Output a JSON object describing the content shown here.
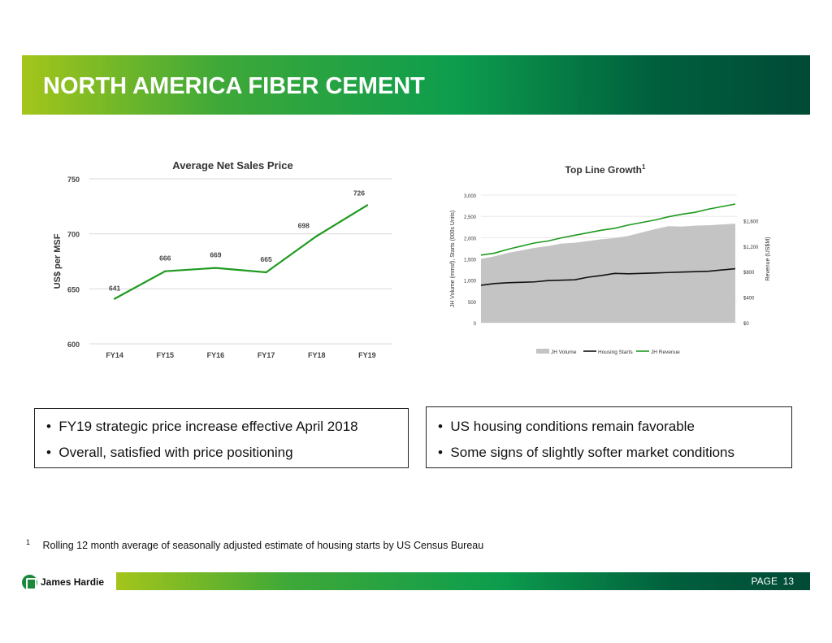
{
  "title": "NORTH AMERICA FIBER CEMENT",
  "chart_data": [
    {
      "type": "line",
      "title": "Average Net Sales Price",
      "ylabel": "US$ per MSF",
      "ylim": [
        600,
        750
      ],
      "yticks": [
        "600",
        "650",
        "700",
        "750"
      ],
      "categories": [
        "FY14",
        "FY15",
        "FY16",
        "FY17",
        "FY18",
        "FY19"
      ],
      "values": [
        641,
        666,
        669,
        665,
        698,
        726
      ],
      "labels": [
        "641",
        "666",
        "669",
        "665",
        "698",
        "726"
      ],
      "color": "#1f9a1f"
    },
    {
      "type": "area",
      "title": "Top Line Growth",
      "title_sup": "1",
      "ylabel": "JH Volume (mmsf), Starts (000s Units)",
      "y2label": "Revenue (US$M)",
      "ylim": [
        0,
        3000
      ],
      "y2lim": [
        0,
        2000
      ],
      "yticks": [
        "0",
        "500",
        "1,000",
        "1,500",
        "2,000",
        "2,500",
        "3,000"
      ],
      "y2ticks": [
        "$0",
        "$400",
        "$800",
        "$1,200",
        "$1,600"
      ],
      "series": [
        {
          "name": "JH Volume",
          "color": "#c4c4c4",
          "values": [
            1500,
            1560,
            1640,
            1700,
            1760,
            1800,
            1860,
            1880,
            1920,
            1960,
            1990,
            2040,
            2120,
            2200,
            2270,
            2260,
            2280,
            2290,
            2310,
            2330
          ]
        },
        {
          "name": "Housing Starts",
          "color": "#111111",
          "values": [
            880,
            920,
            940,
            950,
            960,
            990,
            1000,
            1010,
            1070,
            1110,
            1160,
            1150,
            1160,
            1170,
            1180,
            1190,
            1200,
            1210,
            1240,
            1270
          ]
        },
        {
          "name": "JH Revenue",
          "color": "#1f9a1f",
          "values": [
            1060,
            1090,
            1150,
            1200,
            1250,
            1280,
            1330,
            1370,
            1410,
            1450,
            1480,
            1530,
            1570,
            1610,
            1660,
            1700,
            1730,
            1780,
            1820,
            1860
          ]
        }
      ]
    }
  ],
  "bullets_left": [
    "FY19 strategic price increase effective April 2018",
    "Overall, satisfied with price positioning"
  ],
  "bullets_right": [
    "US housing conditions remain favorable",
    "Some signs of slightly softer market conditions"
  ],
  "bullet_symbol": "•",
  "footnote": {
    "marker": "1",
    "text": "Rolling 12 month average of seasonally adjusted estimate of housing starts by US Census Bureau"
  },
  "logo": {
    "text": "James Hardie",
    "reg": "®"
  },
  "footer": {
    "page_label": "PAGE",
    "page_number": "13"
  },
  "colors": {
    "green": "#1f9a1f",
    "dark_green": "#004a36",
    "lime": "#a4c51a"
  }
}
